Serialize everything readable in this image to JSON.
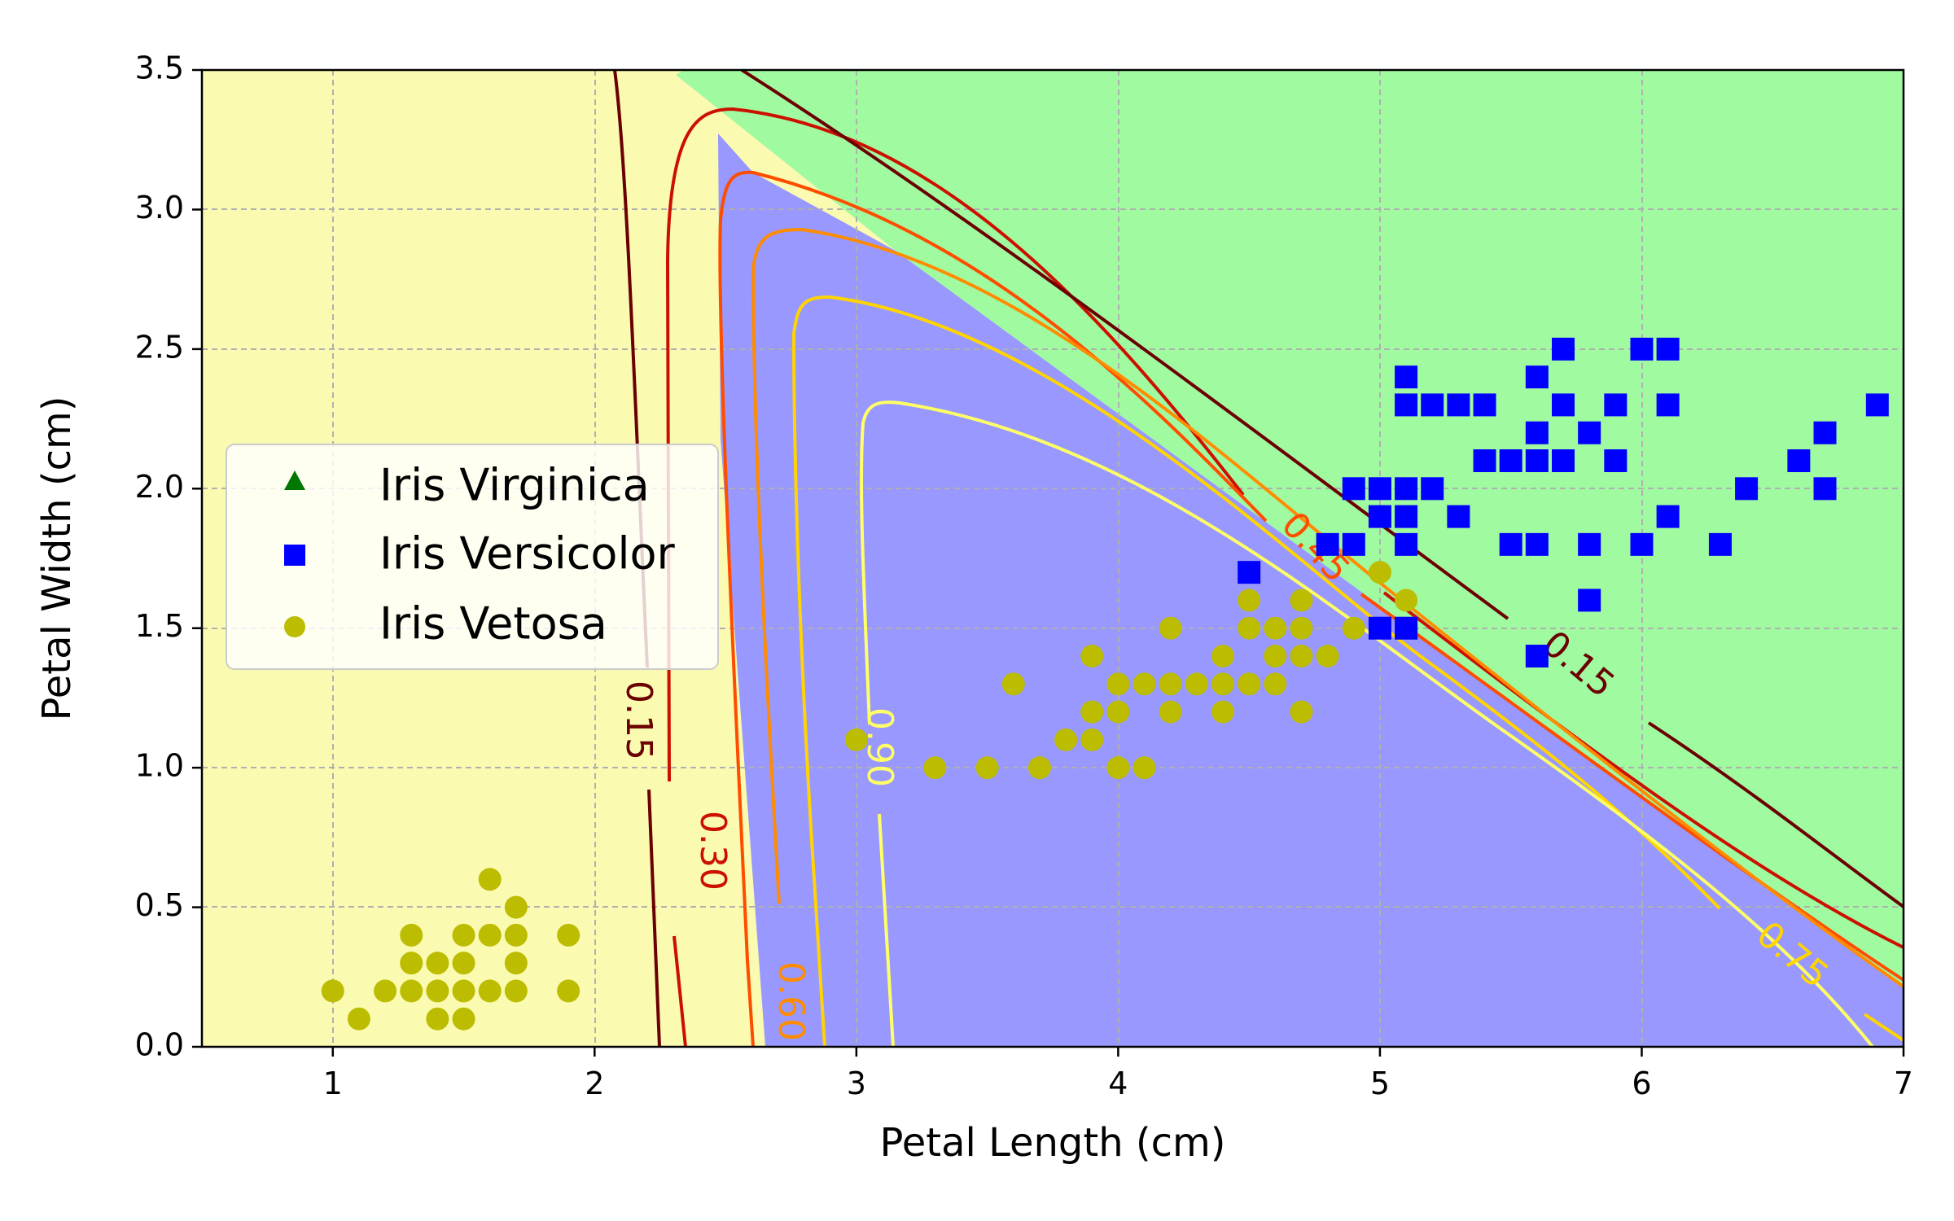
{
  "chart_data": {
    "type": "scatter",
    "xlabel": "Petal Length (cm)",
    "ylabel": "Petal Width (cm)",
    "xlim": [
      0.5,
      7
    ],
    "ylim": [
      0,
      3.5
    ],
    "xticks": [
      "1",
      "2",
      "3",
      "4",
      "5",
      "6",
      "7"
    ],
    "yticks": [
      "0.0",
      "0.5",
      "1.0",
      "1.5",
      "2.0",
      "2.5",
      "3.0",
      "3.5"
    ],
    "grid": true,
    "legend": {
      "placement": "center-left",
      "entries": [
        "Iris Virginica",
        "Iris Versicolor",
        "Iris Vetosa"
      ]
    },
    "regions": [
      {
        "color": "#fafab0"
      },
      {
        "color": "#9898ff"
      },
      {
        "color": "#a0faa0"
      }
    ],
    "contour_labels": [
      "0.15",
      "0.30",
      "0.45",
      "0.60",
      "0.75",
      "0.90",
      "0.15"
    ],
    "series": [
      {
        "name": "Iris Virginica",
        "marker": "triangle",
        "color": "#007700",
        "points": []
      },
      {
        "name": "Iris Versicolor",
        "marker": "square",
        "color": "#0000ff",
        "points": [
          [
            5.1,
            2.4
          ],
          [
            5.6,
            2.4
          ],
          [
            5.7,
            2.5
          ],
          [
            6.0,
            2.5
          ],
          [
            6.1,
            2.5
          ],
          [
            5.1,
            2.3
          ],
          [
            5.2,
            2.3
          ],
          [
            5.3,
            2.3
          ],
          [
            5.4,
            2.3
          ],
          [
            5.7,
            2.3
          ],
          [
            5.9,
            2.3
          ],
          [
            6.1,
            2.3
          ],
          [
            6.9,
            2.3
          ],
          [
            5.6,
            2.2
          ],
          [
            5.8,
            2.2
          ],
          [
            6.7,
            2.2
          ],
          [
            5.4,
            2.1
          ],
          [
            5.5,
            2.1
          ],
          [
            5.6,
            2.1
          ],
          [
            5.7,
            2.1
          ],
          [
            5.9,
            2.1
          ],
          [
            6.6,
            2.1
          ],
          [
            4.9,
            2.0
          ],
          [
            5.0,
            2.0
          ],
          [
            5.1,
            2.0
          ],
          [
            5.2,
            2.0
          ],
          [
            6.4,
            2.0
          ],
          [
            6.7,
            2.0
          ],
          [
            5.0,
            1.9
          ],
          [
            5.1,
            1.9
          ],
          [
            5.3,
            1.9
          ],
          [
            6.1,
            1.9
          ],
          [
            4.8,
            1.8
          ],
          [
            4.9,
            1.8
          ],
          [
            5.1,
            1.8
          ],
          [
            5.5,
            1.8
          ],
          [
            5.6,
            1.8
          ],
          [
            5.8,
            1.8
          ],
          [
            6.0,
            1.8
          ],
          [
            6.3,
            1.8
          ],
          [
            4.5,
            1.7
          ],
          [
            5.8,
            1.6
          ],
          [
            5.0,
            1.5
          ],
          [
            5.1,
            1.5
          ],
          [
            5.6,
            1.4
          ]
        ]
      },
      {
        "name": "Iris Vetosa",
        "marker": "circle",
        "color": "#bcbc00",
        "points": [
          [
            1.6,
            0.6
          ],
          [
            1.7,
            0.5
          ],
          [
            1.3,
            0.4
          ],
          [
            1.5,
            0.4
          ],
          [
            1.6,
            0.4
          ],
          [
            1.7,
            0.4
          ],
          [
            1.9,
            0.4
          ],
          [
            1.3,
            0.3
          ],
          [
            1.4,
            0.3
          ],
          [
            1.5,
            0.3
          ],
          [
            1.7,
            0.3
          ],
          [
            1.0,
            0.2
          ],
          [
            1.2,
            0.2
          ],
          [
            1.3,
            0.2
          ],
          [
            1.4,
            0.2
          ],
          [
            1.5,
            0.2
          ],
          [
            1.6,
            0.2
          ],
          [
            1.7,
            0.2
          ],
          [
            1.9,
            0.2
          ],
          [
            1.1,
            0.1
          ],
          [
            1.4,
            0.1
          ],
          [
            1.5,
            0.1
          ],
          [
            5.0,
            1.7
          ],
          [
            4.5,
            1.6
          ],
          [
            4.7,
            1.6
          ],
          [
            5.1,
            1.6
          ],
          [
            4.2,
            1.5
          ],
          [
            4.5,
            1.5
          ],
          [
            4.6,
            1.5
          ],
          [
            4.7,
            1.5
          ],
          [
            4.9,
            1.5
          ],
          [
            3.9,
            1.4
          ],
          [
            4.4,
            1.4
          ],
          [
            4.6,
            1.4
          ],
          [
            4.7,
            1.4
          ],
          [
            4.8,
            1.4
          ],
          [
            3.6,
            1.3
          ],
          [
            4.0,
            1.3
          ],
          [
            4.1,
            1.3
          ],
          [
            4.2,
            1.3
          ],
          [
            4.3,
            1.3
          ],
          [
            4.4,
            1.3
          ],
          [
            4.5,
            1.3
          ],
          [
            4.6,
            1.3
          ],
          [
            3.9,
            1.2
          ],
          [
            4.0,
            1.2
          ],
          [
            4.2,
            1.2
          ],
          [
            4.4,
            1.2
          ],
          [
            4.7,
            1.2
          ],
          [
            3.0,
            1.1
          ],
          [
            3.8,
            1.1
          ],
          [
            3.9,
            1.1
          ],
          [
            3.3,
            1.0
          ],
          [
            3.5,
            1.0
          ],
          [
            3.7,
            1.0
          ],
          [
            4.0,
            1.0
          ],
          [
            4.1,
            1.0
          ]
        ]
      }
    ]
  }
}
